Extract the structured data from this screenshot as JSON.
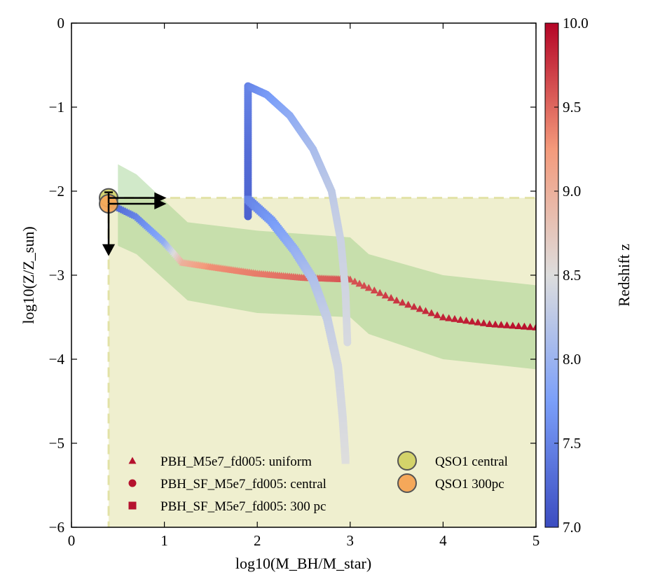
{
  "chart_data": {
    "type": "scatter",
    "xlabel": "log10(M_BH/M_star)",
    "ylabel": "log10(Z/Z_sun)",
    "xlim": [
      0,
      5
    ],
    "ylim": [
      -6,
      0
    ],
    "xticks": [
      "0",
      "1",
      "2",
      "3",
      "4",
      "5"
    ],
    "yticks": [
      "0",
      "−1",
      "−2",
      "−3",
      "−4",
      "−5",
      "−6"
    ],
    "colorbar": {
      "label": "Redshift z",
      "range": [
        7.0,
        10.0
      ],
      "ticks": [
        "7.0",
        "7.5",
        "8.0",
        "8.5",
        "9.0",
        "9.5",
        "10.0"
      ],
      "colormap": "coolwarm"
    },
    "shaded_region": {
      "x_min": 0.4,
      "y_max": -2.08,
      "color": "#efefcf",
      "edge": "#e2e2a6"
    },
    "band": {
      "color": "#8cc878",
      "upper": [
        [
          0.5,
          -1.68
        ],
        [
          0.7,
          -1.8
        ],
        [
          1.25,
          -2.37
        ],
        [
          2,
          -2.47
        ],
        [
          3,
          -2.55
        ],
        [
          3.2,
          -2.75
        ],
        [
          4,
          -3.0
        ],
        [
          5,
          -3.12
        ]
      ],
      "lower": [
        [
          0.5,
          -2.65
        ],
        [
          0.7,
          -2.75
        ],
        [
          1.25,
          -3.3
        ],
        [
          2,
          -3.45
        ],
        [
          3,
          -3.5
        ],
        [
          3.2,
          -3.7
        ],
        [
          4,
          -4.0
        ],
        [
          5,
          -4.12
        ]
      ]
    },
    "series": [
      {
        "name": "PBH_M5e7_fd005: uniform",
        "marker": "triangle",
        "points": [
          [
            0.42,
            -2.15,
            7.2
          ],
          [
            0.7,
            -2.3,
            7.5
          ],
          [
            1.0,
            -2.6,
            7.9
          ],
          [
            1.2,
            -2.85,
            9.0
          ],
          [
            1.5,
            -2.9,
            9.3
          ],
          [
            2.0,
            -2.98,
            9.4
          ],
          [
            2.5,
            -3.03,
            9.5
          ],
          [
            3.0,
            -3.05,
            9.6
          ],
          [
            3.2,
            -3.15,
            9.65
          ],
          [
            3.5,
            -3.3,
            9.75
          ],
          [
            4.0,
            -3.5,
            9.85
          ],
          [
            4.5,
            -3.58,
            9.9
          ],
          [
            5.0,
            -3.62,
            9.95
          ]
        ]
      },
      {
        "name": "PBH_SF_M5e7_fd005: central",
        "marker": "circle",
        "points": [
          [
            1.9,
            -2.3,
            7.2
          ],
          [
            1.9,
            -1.5,
            7.3
          ],
          [
            1.9,
            -0.75,
            7.5
          ],
          [
            2.1,
            -0.85,
            7.7
          ],
          [
            2.35,
            -1.1,
            7.9
          ],
          [
            2.6,
            -1.5,
            8.1
          ],
          [
            2.8,
            -2.0,
            8.25
          ],
          [
            2.9,
            -2.6,
            8.35
          ],
          [
            2.95,
            -3.2,
            8.4
          ],
          [
            2.97,
            -3.8,
            8.45
          ]
        ]
      },
      {
        "name": "PBH_SF_M5e7_fd005: 300 pc",
        "marker": "square",
        "points": [
          [
            1.9,
            -2.1,
            7.5
          ],
          [
            2.15,
            -2.35,
            7.7
          ],
          [
            2.4,
            -2.7,
            7.95
          ],
          [
            2.6,
            -3.05,
            8.15
          ],
          [
            2.75,
            -3.5,
            8.3
          ],
          [
            2.87,
            -4.1,
            8.4
          ],
          [
            2.92,
            -4.7,
            8.45
          ],
          [
            2.95,
            -5.2,
            8.5
          ]
        ]
      }
    ],
    "observations": [
      {
        "name": "QSO1 central",
        "x": 0.4,
        "y": -2.08,
        "color": "#d3d36a",
        "upper_limit_y": true,
        "lower_limit_x": true
      },
      {
        "name": "QSO1 300pc",
        "x": 0.4,
        "y": -2.15,
        "color": "#f5a85a",
        "upper_limit_y": true,
        "lower_limit_x": true
      }
    ]
  }
}
